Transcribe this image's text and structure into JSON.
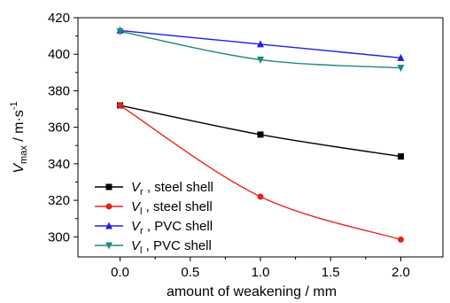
{
  "chart_data": {
    "type": "line",
    "x": [
      0.0,
      1.0,
      2.0
    ],
    "xlim": [
      -0.3,
      2.3
    ],
    "ylim": [
      289,
      420
    ],
    "x_ticks": [
      "0.0",
      "0.5",
      "1.0",
      "1.5",
      "2.0"
    ],
    "x_tick_values": [
      0.0,
      0.5,
      1.0,
      1.5,
      2.0
    ],
    "y_ticks": [
      "300",
      "320",
      "340",
      "360",
      "380",
      "400",
      "420"
    ],
    "y_tick_values": [
      300,
      320,
      340,
      360,
      380,
      400,
      420
    ],
    "xlabel": "amount of weakening / mm",
    "ylabel": {
      "prefix": "V",
      "sub": "max",
      "mid": " / m·s",
      "sup": "-1"
    },
    "grid": false,
    "legend_position": "bottom-left",
    "series": [
      {
        "var": "V",
        "sub": "r",
        "text": " , steel shell",
        "color": "#000000",
        "marker": "square",
        "values": [
          372,
          356,
          344
        ]
      },
      {
        "var": "V",
        "sub": "l",
        "text": " , steel shell",
        "color": "#e8221b",
        "marker": "circle",
        "values": [
          372,
          322,
          298.5
        ]
      },
      {
        "var": "V",
        "sub": "r",
        "text": " , PVC shell",
        "color": "#1f1fe0",
        "marker": "triangle-up",
        "values": [
          413,
          405.5,
          398
        ]
      },
      {
        "var": "V",
        "sub": "l",
        "text": " , PVC shell",
        "color": "#1b8a80",
        "marker": "triangle-down",
        "values": [
          412.5,
          397,
          392.5
        ]
      }
    ]
  }
}
